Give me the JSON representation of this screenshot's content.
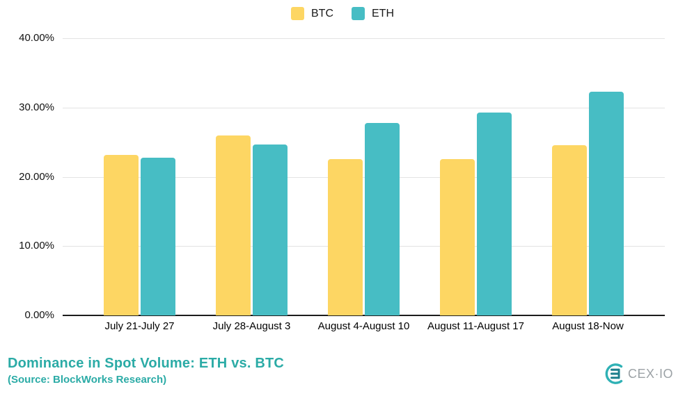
{
  "page": {
    "background": "#ffffff"
  },
  "chart_data": {
    "type": "bar",
    "title": "Dominance in Spot Volume: ETH vs. BTC",
    "categories": [
      "July 21-July 27",
      "July 28-August 3",
      "August 4-August 10",
      "August 11-August 17",
      "August 18-Now"
    ],
    "series": [
      {
        "name": "BTC",
        "color": "#FDD663",
        "values": [
          23.2,
          26.0,
          22.6,
          22.6,
          24.6
        ]
      },
      {
        "name": "ETH",
        "color": "#47BDC4",
        "values": [
          22.8,
          24.7,
          27.8,
          29.3,
          32.3
        ]
      }
    ],
    "ylim": [
      0,
      40
    ],
    "ytick_labels": [
      "40.00%",
      "30.00%",
      "20.00%",
      "10.00%",
      "0.00%"
    ],
    "grid": "horizontal",
    "legend_position": "top-center"
  },
  "footer": {
    "title": "Dominance in Spot Volume: ETH vs. BTC",
    "subtitle": "(Source: BlockWorks Research)",
    "accent_color": "#2BABA6"
  },
  "logo": {
    "text": "CEX·IO",
    "text_color": "#9CA2A6",
    "icon_teal": "#2FB1B5",
    "icon_dark": "#1D7F8C"
  },
  "colors": {
    "gridline": "#e3e3e3",
    "axis_line": "#1c1c1c",
    "tick_text": "#111111"
  }
}
